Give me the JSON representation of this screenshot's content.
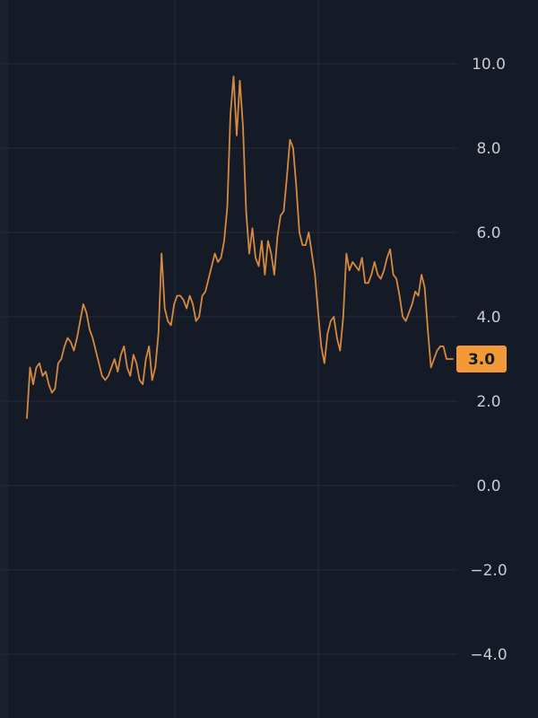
{
  "colors": {
    "background": "#151a27",
    "left_strip": "#1b202d",
    "grid": "#262c3a",
    "tick_text": "#c9ccd3",
    "series": "#d68a3f",
    "badge_bg": "#f39a36",
    "badge_text": "#151a27"
  },
  "chart_data": {
    "type": "line",
    "title": "",
    "xlabel": "",
    "ylabel": "",
    "ylim": [
      -4.6,
      10.6
    ],
    "yticks": [
      10.0,
      8.0,
      6.0,
      4.0,
      2.0,
      0.0,
      -2.0,
      -4.0
    ],
    "ytick_labels": [
      "10.0",
      "8.0",
      "6.0",
      "4.0",
      "2.0",
      "0.0",
      "−2.0",
      "−4.0"
    ],
    "grid": true,
    "last_value_label": "3.0",
    "series": [
      {
        "values": [
          1.6,
          2.8,
          2.4,
          2.8,
          2.9,
          2.6,
          2.7,
          2.4,
          2.2,
          2.3,
          2.9,
          3.0,
          3.3,
          3.5,
          3.4,
          3.2,
          3.5,
          3.9,
          4.3,
          4.1,
          3.7,
          3.5,
          3.2,
          2.9,
          2.6,
          2.5,
          2.6,
          2.8,
          3.0,
          2.7,
          3.1,
          3.3,
          2.8,
          2.6,
          3.1,
          2.9,
          2.5,
          2.4,
          3.0,
          3.3,
          2.5,
          2.8,
          3.6,
          5.5,
          4.2,
          3.9,
          3.8,
          4.3,
          4.5,
          4.5,
          4.4,
          4.2,
          4.5,
          4.3,
          3.9,
          4.0,
          4.5,
          4.6,
          4.9,
          5.2,
          5.5,
          5.3,
          5.4,
          5.8,
          6.6,
          8.8,
          9.7,
          8.3,
          9.6,
          8.5,
          6.5,
          5.5,
          6.1,
          5.4,
          5.2,
          5.8,
          5.0,
          5.8,
          5.5,
          5.0,
          5.9,
          6.4,
          6.5,
          7.3,
          8.2,
          8.0,
          7.1,
          6.0,
          5.7,
          5.7,
          6.0,
          5.5,
          5.0,
          4.1,
          3.3,
          2.9,
          3.6,
          3.9,
          4.0,
          3.5,
          3.2,
          4.0,
          5.5,
          5.1,
          5.3,
          5.2,
          5.1,
          5.4,
          4.8,
          4.8,
          5.0,
          5.3,
          5.0,
          4.9,
          5.1,
          5.4,
          5.6,
          5.0,
          4.9,
          4.5,
          4.0,
          3.9,
          4.1,
          4.3,
          4.6,
          4.5,
          5.0,
          4.7,
          3.7,
          2.8,
          3.0,
          3.2,
          3.3,
          3.3,
          3.0,
          3.0,
          3.0
        ]
      }
    ]
  }
}
